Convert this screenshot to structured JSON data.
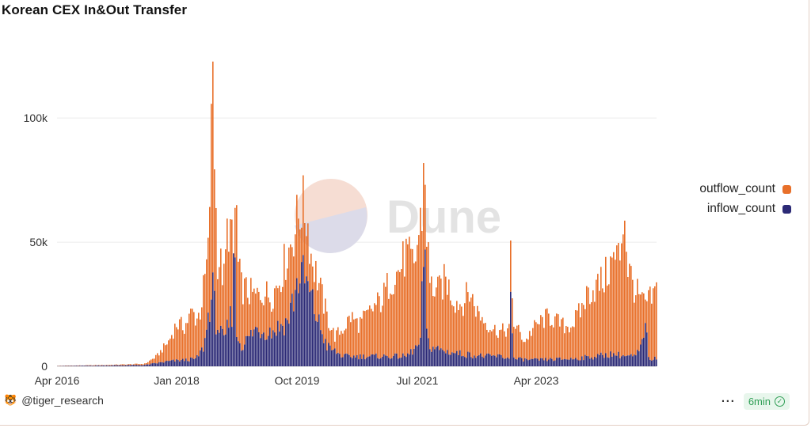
{
  "title": "Korean CEX In&Out Transfer",
  "chart_data": {
    "type": "bar",
    "stacked": true,
    "x_ticks": [
      "Apr 2016",
      "Jan 2018",
      "Oct 2019",
      "Jul 2021",
      "Apr 2023"
    ],
    "y_ticks": [
      "0",
      "50k",
      "100k"
    ],
    "ylim": [
      0,
      130000
    ],
    "grid": true,
    "legend_position": "right",
    "series": [
      {
        "name": "outflow_count",
        "color": "#e8702a"
      },
      {
        "name": "inflow_count",
        "color": "#2c2a76"
      }
    ],
    "anchors": {
      "outflow_count": [
        [
          0,
          200
        ],
        [
          60,
          500
        ],
        [
          110,
          1000
        ],
        [
          125,
          4000
        ],
        [
          140,
          10000
        ],
        [
          150,
          17000
        ],
        [
          160,
          16000
        ],
        [
          170,
          22000
        ],
        [
          175,
          19000
        ],
        [
          180,
          22000
        ],
        [
          185,
          33000
        ],
        [
          190,
          45000
        ],
        [
          194,
          92000
        ],
        [
          196,
          125000
        ],
        [
          199,
          70000
        ],
        [
          202,
          44000
        ],
        [
          205,
          42000
        ],
        [
          210,
          35000
        ],
        [
          215,
          58000
        ],
        [
          218,
          55000
        ],
        [
          222,
          44000
        ],
        [
          225,
          72000
        ],
        [
          228,
          40000
        ],
        [
          232,
          32000
        ],
        [
          240,
          30000
        ],
        [
          250,
          28000
        ],
        [
          260,
          30000
        ],
        [
          270,
          28000
        ],
        [
          280,
          35000
        ],
        [
          290,
          45000
        ],
        [
          300,
          56000
        ],
        [
          308,
          65000
        ],
        [
          315,
          60000
        ],
        [
          320,
          45000
        ],
        [
          330,
          33000
        ],
        [
          340,
          20000
        ],
        [
          350,
          12000
        ],
        [
          360,
          15000
        ],
        [
          370,
          20000
        ],
        [
          380,
          17000
        ],
        [
          390,
          20000
        ],
        [
          400,
          24000
        ],
        [
          410,
          27000
        ],
        [
          420,
          35000
        ],
        [
          430,
          38000
        ],
        [
          440,
          45000
        ],
        [
          450,
          40000
        ],
        [
          460,
          62000
        ],
        [
          463,
          87000
        ],
        [
          466,
          55000
        ],
        [
          470,
          33000
        ],
        [
          480,
          30000
        ],
        [
          490,
          35000
        ],
        [
          500,
          27000
        ],
        [
          510,
          25000
        ],
        [
          520,
          30000
        ],
        [
          530,
          22000
        ],
        [
          540,
          18000
        ],
        [
          550,
          15000
        ],
        [
          560,
          14000
        ],
        [
          570,
          15000
        ],
        [
          572,
          43000
        ],
        [
          575,
          18000
        ],
        [
          590,
          10000
        ],
        [
          600,
          15000
        ],
        [
          610,
          18000
        ],
        [
          620,
          20000
        ],
        [
          630,
          18000
        ],
        [
          640,
          16000
        ],
        [
          650,
          17000
        ],
        [
          660,
          22000
        ],
        [
          670,
          30000
        ],
        [
          680,
          32000
        ],
        [
          690,
          35000
        ],
        [
          700,
          42000
        ],
        [
          710,
          45000
        ],
        [
          715,
          65000
        ],
        [
          720,
          40000
        ],
        [
          730,
          30000
        ],
        [
          740,
          25000
        ],
        [
          750,
          27000
        ],
        [
          760,
          33000
        ],
        [
          770,
          42000
        ],
        [
          775,
          90000
        ],
        [
          778,
          72000
        ],
        [
          782,
          50000
        ],
        [
          787,
          52000
        ],
        [
          789,
          20000
        ]
      ],
      "inflow_count": [
        [
          0,
          100
        ],
        [
          110,
          500
        ],
        [
          140,
          2000
        ],
        [
          160,
          2500
        ],
        [
          175,
          3000
        ],
        [
          185,
          8000
        ],
        [
          192,
          25000
        ],
        [
          196,
          30000
        ],
        [
          200,
          18000
        ],
        [
          210,
          10000
        ],
        [
          215,
          16000
        ],
        [
          220,
          22000
        ],
        [
          222,
          60000
        ],
        [
          226,
          13000
        ],
        [
          232,
          8000
        ],
        [
          250,
          15000
        ],
        [
          270,
          14000
        ],
        [
          290,
          18000
        ],
        [
          300,
          30000
        ],
        [
          305,
          37000
        ],
        [
          312,
          35000
        ],
        [
          320,
          27000
        ],
        [
          330,
          17000
        ],
        [
          340,
          8000
        ],
        [
          360,
          4000
        ],
        [
          400,
          4000
        ],
        [
          440,
          4000
        ],
        [
          458,
          9000
        ],
        [
          463,
          55000
        ],
        [
          466,
          12000
        ],
        [
          470,
          8000
        ],
        [
          490,
          6000
        ],
        [
          510,
          5000
        ],
        [
          540,
          4000
        ],
        [
          560,
          4000
        ],
        [
          570,
          3000
        ],
        [
          572,
          40000
        ],
        [
          575,
          3000
        ],
        [
          600,
          2500
        ],
        [
          650,
          3000
        ],
        [
          680,
          4000
        ],
        [
          700,
          5000
        ],
        [
          720,
          4000
        ],
        [
          730,
          4000
        ],
        [
          740,
          10000
        ],
        [
          743,
          25000
        ],
        [
          746,
          3000
        ],
        [
          760,
          3000
        ],
        [
          770,
          4000
        ],
        [
          775,
          7000
        ],
        [
          780,
          5000
        ],
        [
          789,
          4000
        ]
      ]
    }
  },
  "footer": {
    "author": "@tiger_research",
    "menu_label": "···",
    "refresh_label": "6min"
  },
  "icons": {
    "author_avatar": "tiger-avatar-icon",
    "refresh_status": "check-circle-icon",
    "watermark": "dune-logo"
  },
  "watermark_text": "Dune"
}
